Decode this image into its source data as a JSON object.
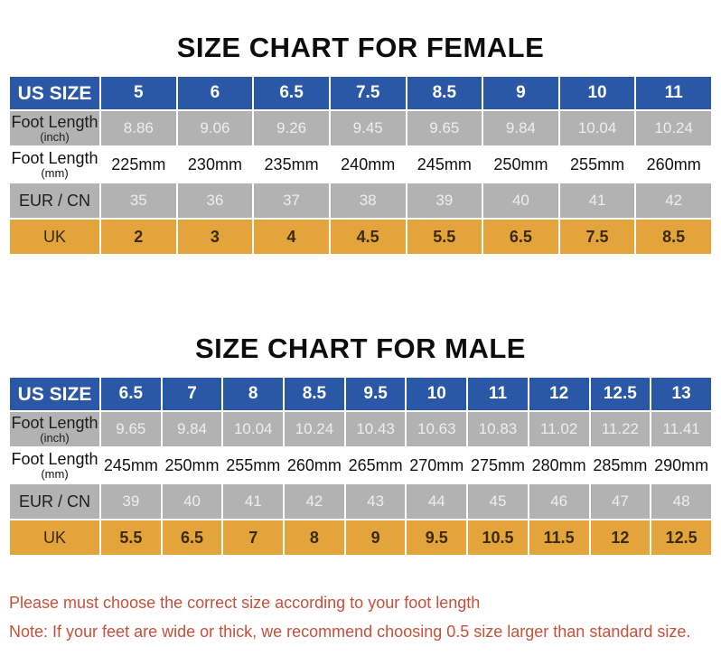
{
  "chart_data": [
    {
      "type": "table",
      "title": "SIZE CHART FOR FEMALE",
      "rows": [
        {
          "style": "us",
          "label": "US SIZE",
          "sublabel": "",
          "values": [
            "5",
            "6",
            "6.5",
            "7.5",
            "8.5",
            "9",
            "10",
            "11"
          ]
        },
        {
          "style": "inch",
          "label": "Foot Length",
          "sublabel": "(inch)",
          "values": [
            "8.86",
            "9.06",
            "9.26",
            "9.45",
            "9.65",
            "9.84",
            "10.04",
            "10.24"
          ]
        },
        {
          "style": "mm",
          "label": "Foot Length",
          "sublabel": "(mm)",
          "values": [
            "225mm",
            "230mm",
            "235mm",
            "240mm",
            "245mm",
            "250mm",
            "255mm",
            "260mm"
          ]
        },
        {
          "style": "eur",
          "label": "EUR / CN",
          "sublabel": "",
          "values": [
            "35",
            "36",
            "37",
            "38",
            "39",
            "40",
            "41",
            "42"
          ]
        },
        {
          "style": "uk",
          "label": "UK",
          "sublabel": "",
          "values": [
            "2",
            "3",
            "4",
            "4.5",
            "5.5",
            "6.5",
            "7.5",
            "8.5"
          ]
        }
      ]
    },
    {
      "type": "table",
      "title": "SIZE CHART FOR MALE",
      "rows": [
        {
          "style": "us",
          "label": "US SIZE",
          "sublabel": "",
          "values": [
            "6.5",
            "7",
            "8",
            "8.5",
            "9.5",
            "10",
            "11",
            "12",
            "12.5",
            "13"
          ]
        },
        {
          "style": "inch",
          "label": "Foot Length",
          "sublabel": "(inch)",
          "values": [
            "9.65",
            "9.84",
            "10.04",
            "10.24",
            "10.43",
            "10.63",
            "10.83",
            "11.02",
            "11.22",
            "11.41"
          ]
        },
        {
          "style": "mm",
          "label": "Foot Length",
          "sublabel": "(mm)",
          "values": [
            "245mm",
            "250mm",
            "255mm",
            "260mm",
            "265mm",
            "270mm",
            "275mm",
            "280mm",
            "285mm",
            "290mm"
          ]
        },
        {
          "style": "eur",
          "label": "EUR / CN",
          "sublabel": "",
          "values": [
            "39",
            "40",
            "41",
            "42",
            "43",
            "44",
            "45",
            "46",
            "47",
            "48"
          ]
        },
        {
          "style": "uk",
          "label": "UK",
          "sublabel": "",
          "values": [
            "5.5",
            "6.5",
            "7",
            "8",
            "9",
            "9.5",
            "10.5",
            "11.5",
            "12",
            "12.5"
          ]
        }
      ]
    }
  ],
  "footer": {
    "line1": "Please must choose the correct size  according to your foot length",
    "line2": "Note: If your feet are wide or thick, we recommend choosing 0.5 size larger than standard size."
  },
  "colors": {
    "header_blue": "#2a58a6",
    "row_gray": "#b2b2b2",
    "uk_orange": "#e2a43b",
    "note_red": "#c8503a"
  }
}
